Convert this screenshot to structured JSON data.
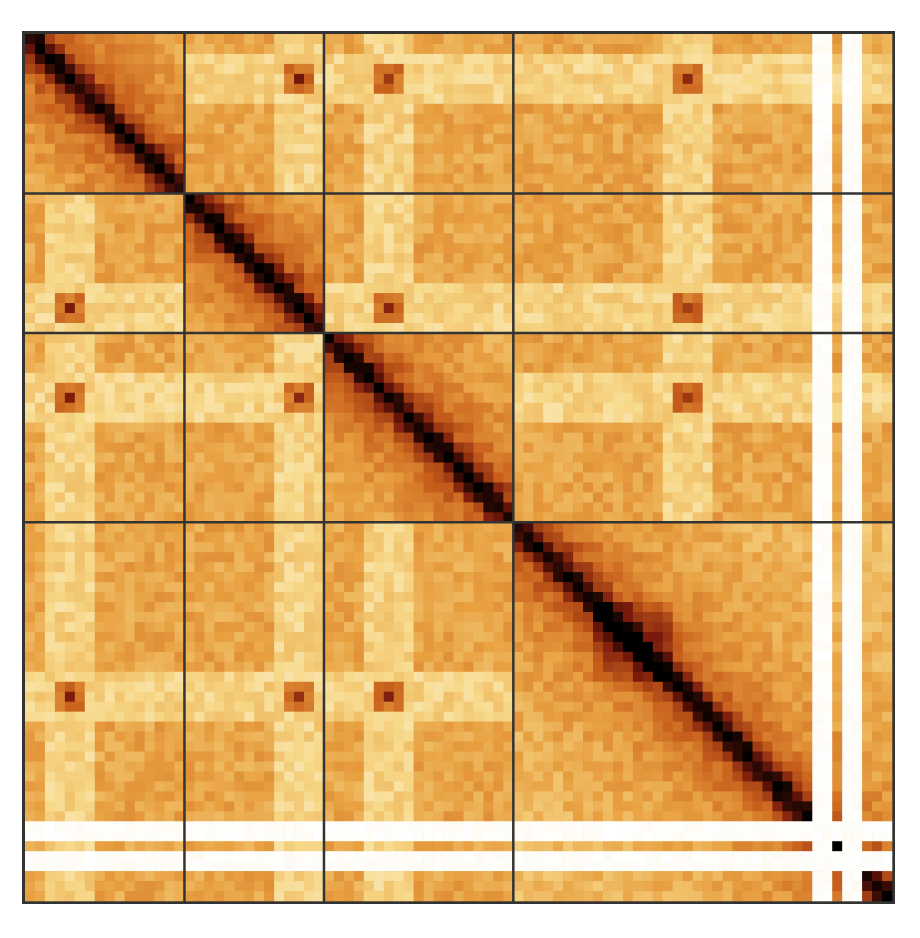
{
  "chart_data": {
    "type": "heatmap",
    "title": "",
    "xlabel": "",
    "ylabel": "",
    "chromosome_bins": [
      16,
      14,
      19,
      38
    ],
    "centromere_bin": [
      4,
      11,
      6,
      17
    ],
    "unmappable_bins_in_last_block": [
      30,
      31,
      33,
      34
    ],
    "colormap": [
      "#ffffff",
      "#f7d98a",
      "#e8a040",
      "#c8601c",
      "#7a1a0c",
      "#000000"
    ],
    "boundary_color": "#333333",
    "grid": false,
    "legend": "none"
  }
}
